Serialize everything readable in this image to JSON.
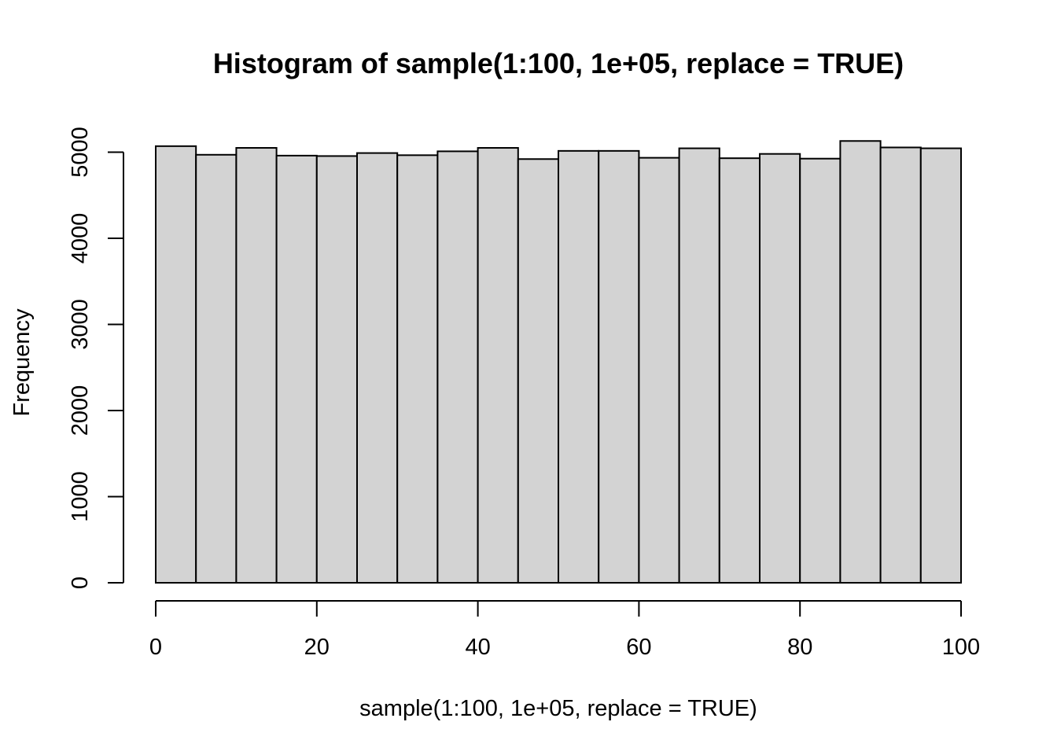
{
  "chart_data": {
    "type": "bar",
    "title": "Histogram of sample(1:100, 1e+05, replace = TRUE)",
    "xlabel": "sample(1:100, 1e+05, replace = TRUE)",
    "ylabel": "Frequency",
    "bin_edges": [
      0,
      5,
      10,
      15,
      20,
      25,
      30,
      35,
      40,
      45,
      50,
      55,
      60,
      65,
      70,
      75,
      80,
      85,
      90,
      95,
      100
    ],
    "values": [
      5070,
      4970,
      5050,
      4960,
      4955,
      4990,
      4965,
      5010,
      5050,
      4920,
      5015,
      5015,
      4935,
      5045,
      4930,
      4980,
      4925,
      5130,
      5055,
      5045
    ],
    "xlim": [
      0,
      100
    ],
    "ylim": [
      0,
      5130
    ],
    "x_ticks": [
      "0",
      "20",
      "40",
      "60",
      "80",
      "100"
    ],
    "y_ticks": [
      "0",
      "1000",
      "2000",
      "3000",
      "4000",
      "5000"
    ],
    "bar_fill": "#d3d3d3",
    "grid": false
  }
}
